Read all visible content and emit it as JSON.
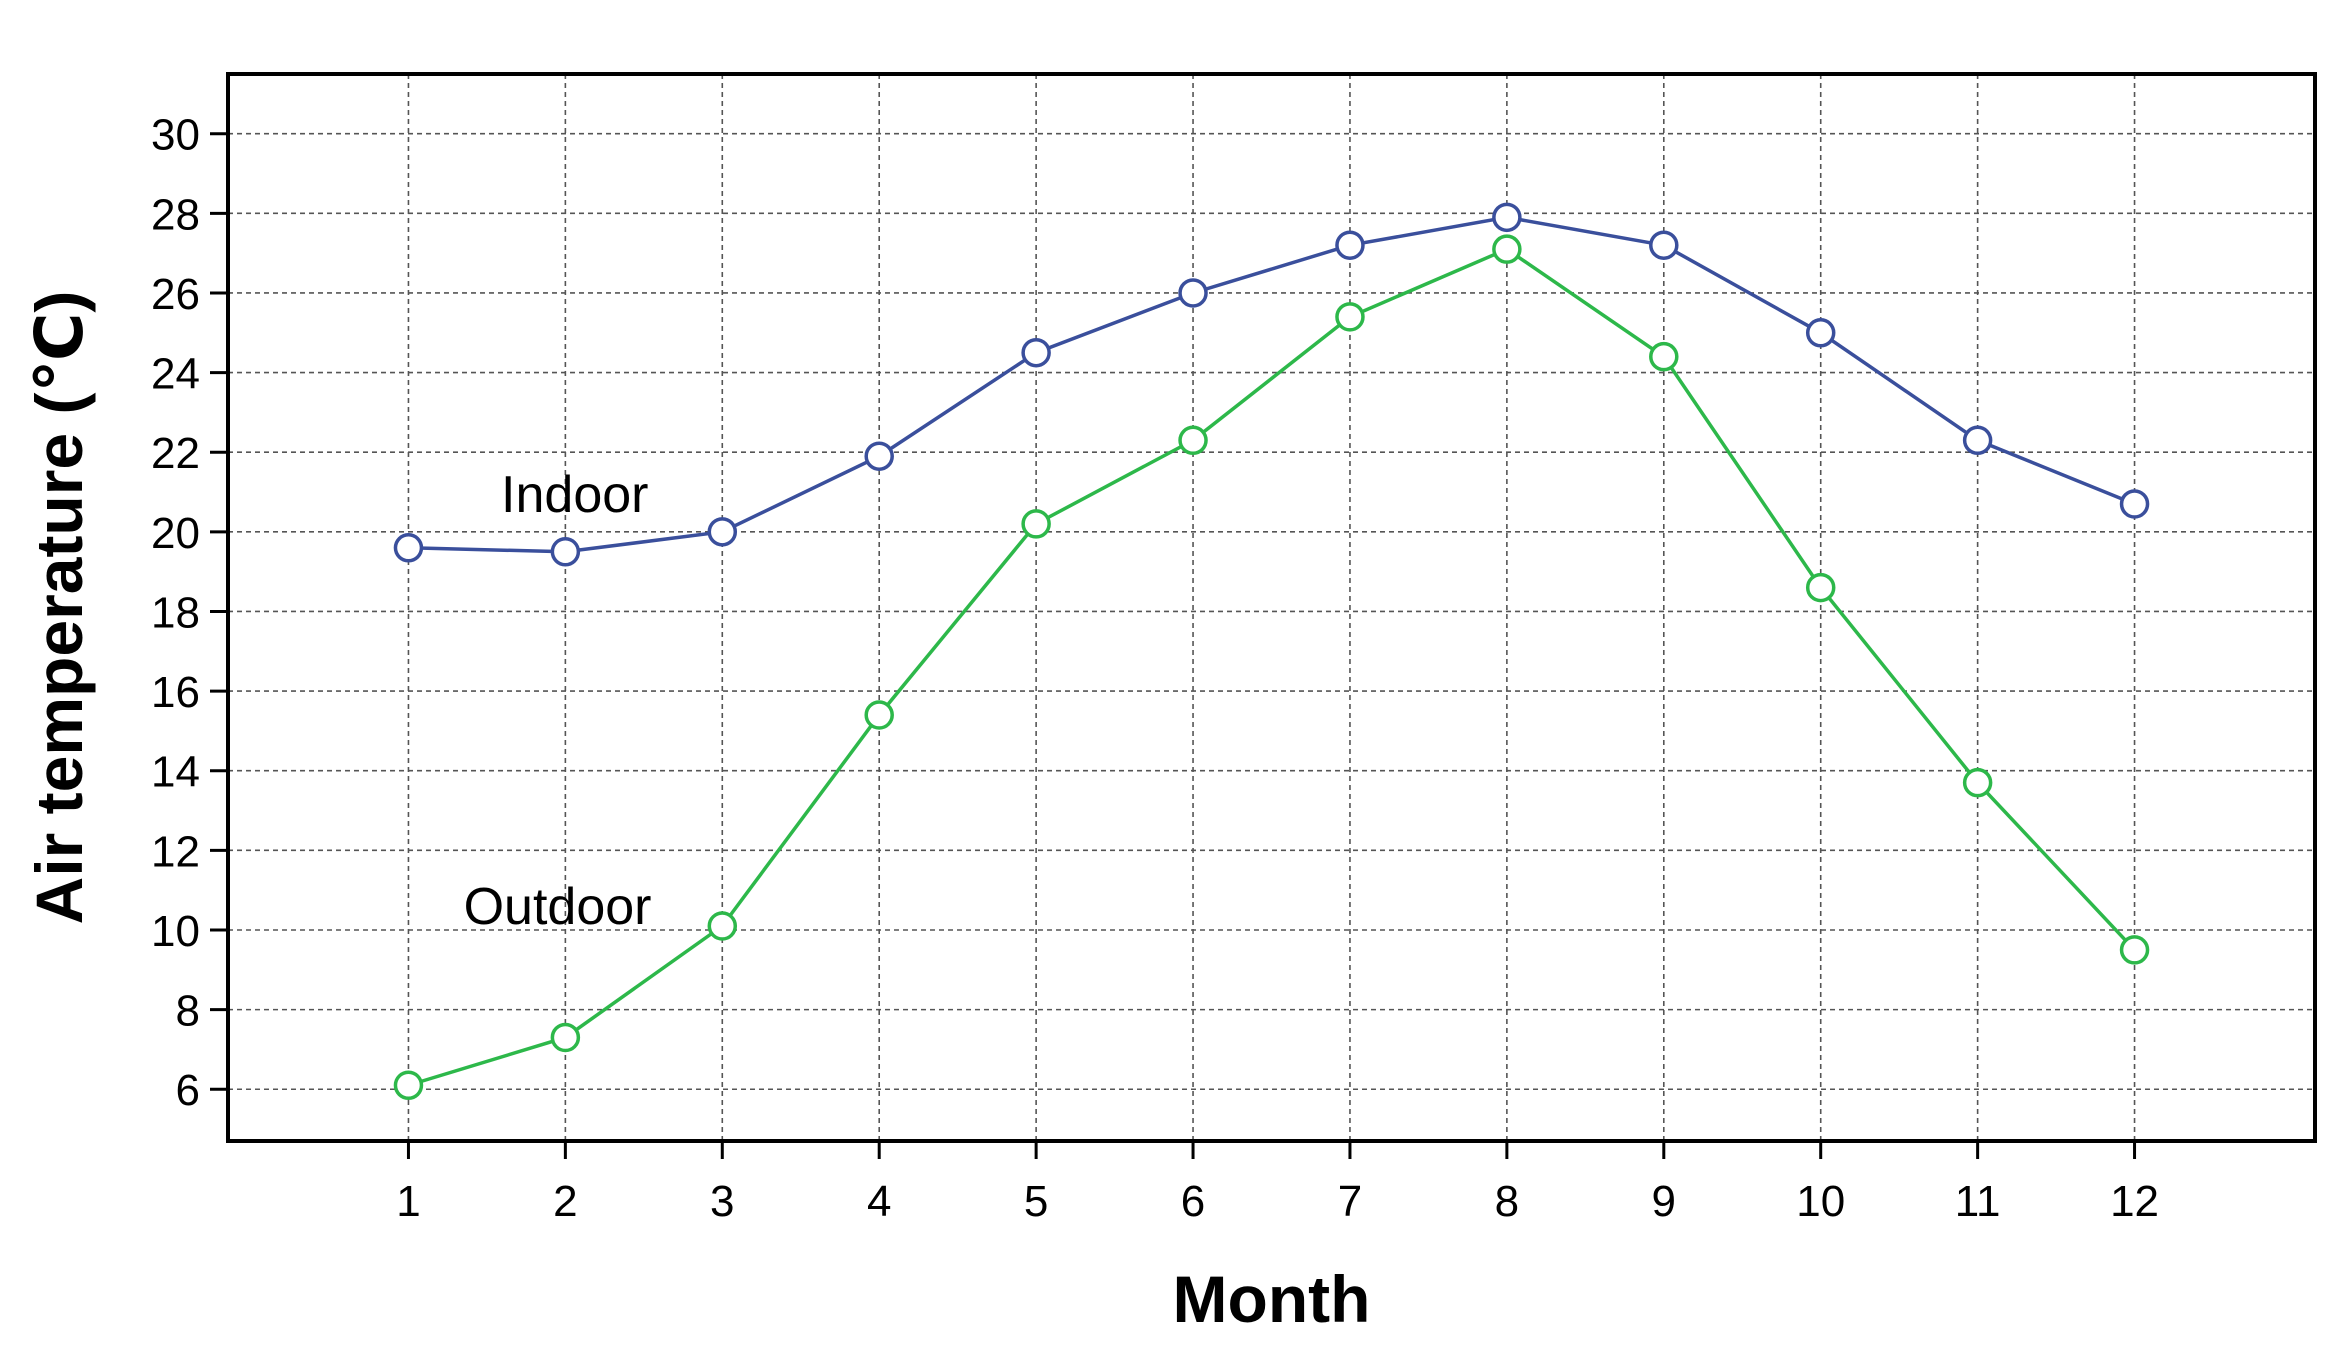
{
  "chart_data": {
    "type": "line",
    "title": "",
    "xlabel": "Month",
    "ylabel": "Air temperature (℃)",
    "x": [
      1,
      2,
      3,
      4,
      5,
      6,
      7,
      8,
      9,
      10,
      11,
      12
    ],
    "xlim": [
      -0.15,
      13.15
    ],
    "ylim": [
      4.7,
      31.5
    ],
    "x_ticks": [
      1,
      2,
      3,
      4,
      5,
      6,
      7,
      8,
      9,
      10,
      11,
      12
    ],
    "y_ticks": [
      6,
      8,
      10,
      12,
      14,
      16,
      18,
      20,
      22,
      24,
      26,
      28,
      30
    ],
    "grid": true,
    "legend": "none",
    "series": [
      {
        "name": "Indoor",
        "color": "#3a4f9c",
        "marker": "open-circle",
        "values": [
          19.6,
          19.5,
          20.0,
          21.9,
          24.5,
          26.0,
          27.2,
          27.9,
          27.2,
          25.0,
          22.3,
          20.7
        ]
      },
      {
        "name": "Outdoor",
        "color": "#2db84a",
        "marker": "open-circle",
        "values": [
          6.1,
          7.3,
          10.1,
          15.4,
          20.2,
          22.3,
          25.4,
          27.1,
          24.4,
          18.6,
          13.7,
          9.5
        ]
      }
    ],
    "annotations": [
      {
        "text": "Indoor",
        "x": 2.06,
        "y": 20.5
      },
      {
        "text": "Outdoor",
        "x": 1.95,
        "y": 10.15
      }
    ]
  }
}
